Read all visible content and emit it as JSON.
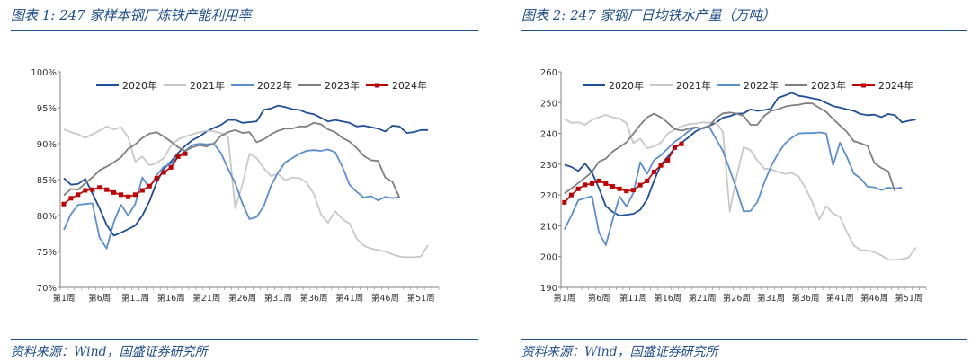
{
  "left": {
    "title": "图表 1:  247 家样本钢厂炼铁产能利用率",
    "source": "资料来源：Wind，国盛证券研究所"
  },
  "right": {
    "title": "图表 2:  247 家钢厂日均铁水产量（万吨）",
    "source": "资料来源：Wind，国盛证券研究所"
  },
  "chart_data": [
    {
      "type": "line",
      "title": "247 家样本钢厂炼铁产能利用率",
      "xlabel": "",
      "ylabel": "",
      "ylim": [
        70,
        100
      ],
      "ytick_labels": [
        "70%",
        "75%",
        "80%",
        "85%",
        "90%",
        "95%",
        "100%"
      ],
      "y_tick_values": [
        70,
        75,
        80,
        85,
        90,
        95,
        100
      ],
      "x_tick_labels": [
        "第1周",
        "第6周",
        "第11周",
        "第16周",
        "第21周",
        "第26周",
        "第31周",
        "第36周",
        "第41周",
        "第46周",
        "第51周"
      ],
      "legend": "top",
      "series": [
        {
          "name": "2020年",
          "color": "#1f4e9a",
          "values": [
            85.2,
            84.3,
            84.4,
            85.1,
            83.1,
            81.0,
            78.7,
            77.2,
            77.6,
            78.1,
            78.6,
            80.0,
            82.0,
            84.6,
            86.5,
            87.5,
            88.7,
            89.7,
            90.5,
            91.0,
            91.7,
            92.2,
            92.6,
            93.3,
            93.3,
            92.9,
            93.0,
            93.1,
            94.7,
            94.9,
            95.3,
            95.1,
            94.8,
            94.7,
            94.3,
            94.1,
            93.6,
            93.1,
            93.3,
            93.1,
            92.9,
            92.4,
            92.5,
            92.3,
            92.1,
            91.7,
            92.5,
            92.4,
            91.5,
            91.6,
            91.9,
            91.9
          ]
        },
        {
          "name": "2021年",
          "color": "#c8c8c8",
          "values": [
            92.0,
            91.6,
            91.3,
            90.8,
            91.3,
            91.8,
            92.4,
            92.0,
            92.3,
            90.9,
            87.5,
            88.2,
            87.0,
            87.3,
            88.0,
            89.7,
            90.6,
            91.0,
            91.3,
            91.6,
            91.8,
            91.7,
            91.5,
            90.9,
            81.0,
            84.3,
            88.6,
            88.0,
            86.6,
            85.5,
            85.8,
            84.9,
            85.3,
            85.2,
            84.6,
            83.0,
            80.2,
            79.0,
            80.6,
            79.5,
            78.9,
            76.8,
            75.8,
            75.4,
            75.2,
            75.0,
            74.6,
            74.3,
            74.2,
            74.2,
            74.3,
            75.9
          ]
        },
        {
          "name": "2022年",
          "color": "#5b8fd0",
          "values": [
            78.0,
            80.2,
            81.5,
            81.6,
            81.7,
            76.9,
            75.4,
            79.1,
            81.5,
            80.0,
            81.6,
            85.3,
            83.8,
            85.6,
            86.8,
            87.2,
            88.2,
            89.0,
            89.8,
            90.0,
            89.9,
            90.0,
            88.7,
            86.5,
            84.5,
            81.7,
            79.5,
            79.8,
            81.3,
            84.1,
            86.0,
            87.4,
            88.0,
            88.6,
            89.0,
            89.1,
            89.0,
            89.2,
            88.8,
            86.8,
            84.3,
            83.3,
            82.5,
            82.7,
            82.1,
            82.6,
            82.4,
            82.6
          ]
        },
        {
          "name": "2023年",
          "color": "#7f7f7f",
          "values": [
            82.8,
            83.7,
            83.6,
            84.5,
            85.3,
            86.3,
            86.8,
            87.4,
            88.1,
            89.3,
            89.9,
            90.8,
            91.4,
            91.6,
            91.0,
            90.3,
            89.5,
            89.0,
            89.5,
            89.8,
            89.6,
            90.0,
            91.1,
            91.6,
            91.9,
            91.5,
            91.6,
            90.2,
            90.6,
            91.3,
            91.8,
            92.1,
            92.1,
            92.4,
            92.4,
            92.9,
            92.7,
            92.0,
            91.6,
            90.8,
            90.3,
            89.4,
            88.3,
            87.7,
            87.6,
            85.3,
            84.7,
            82.5
          ]
        },
        {
          "name": "2024年",
          "color": "#c00000",
          "values": [
            81.6,
            82.4,
            82.9,
            83.5,
            83.6,
            83.9,
            83.6,
            83.2,
            82.9,
            82.6,
            82.9,
            83.5,
            84.1,
            85.2,
            86.0,
            86.7,
            88.2,
            88.6
          ]
        }
      ]
    },
    {
      "type": "line",
      "title": "247 家钢厂日均铁水产量（万吨）",
      "xlabel": "",
      "ylabel": "",
      "ylim": [
        190,
        260
      ],
      "ytick_labels": [
        "190",
        "200",
        "210",
        "220",
        "230",
        "240",
        "250",
        "260"
      ],
      "y_tick_values": [
        190,
        200,
        210,
        220,
        230,
        240,
        250,
        260
      ],
      "x_tick_labels": [
        "第1周",
        "第6周",
        "第11周",
        "第16周",
        "第21周",
        "第26周",
        "第31周",
        "第36周",
        "第41周",
        "第46周",
        "第51周"
      ],
      "legend": "top",
      "series": [
        {
          "name": "2020年",
          "color": "#1f4e9a",
          "values": [
            229.8,
            229.1,
            227.8,
            230.2,
            227.3,
            222.3,
            216.4,
            214.5,
            213.3,
            213.6,
            213.9,
            215.2,
            218.6,
            224.6,
            229.8,
            232.4,
            235.2,
            237.0,
            238.7,
            240.6,
            241.7,
            242.4,
            243.5,
            245.1,
            245.6,
            246.4,
            246.5,
            247.8,
            247.3,
            247.6,
            248.0,
            251.5,
            252.3,
            253.2,
            252.2,
            251.9,
            251.4,
            251.0,
            249.9,
            248.9,
            248.4,
            247.8,
            247.3,
            246.3,
            245.9,
            246.1,
            245.3,
            246.3,
            245.9,
            243.6,
            244.1,
            244.5
          ]
        },
        {
          "name": "2021年",
          "color": "#c8c8c8",
          "values": [
            244.8,
            243.4,
            243.6,
            242.8,
            244.4,
            245.2,
            246.0,
            245.2,
            244.8,
            243.3,
            236.9,
            238.3,
            235.2,
            235.8,
            237.0,
            240.0,
            241.2,
            242.3,
            243.0,
            243.2,
            243.6,
            243.5,
            243.6,
            240.5,
            214.6,
            226.0,
            235.5,
            234.6,
            231.2,
            228.6,
            228.3,
            227.5,
            226.8,
            227.2,
            226.0,
            222.3,
            217.6,
            212.0,
            216.4,
            214.0,
            212.9,
            208.0,
            203.6,
            202.1,
            202.0,
            201.4,
            200.4,
            199.0,
            198.9,
            199.2,
            199.7,
            203.0
          ]
        },
        {
          "name": "2022年",
          "color": "#5b8fd0",
          "values": [
            208.8,
            213.3,
            218.3,
            219.0,
            219.6,
            207.9,
            203.7,
            212.0,
            219.5,
            216.3,
            220.6,
            230.6,
            226.9,
            231.3,
            232.9,
            235.1,
            237.3,
            238.8,
            240.7,
            241.9,
            241.5,
            242.2,
            238.2,
            234.3,
            228.2,
            221.9,
            214.7,
            214.8,
            217.7,
            224.0,
            229.3,
            233.4,
            236.7,
            238.6,
            240.0,
            240.1,
            240.1,
            240.3,
            240.0,
            229.6,
            237.0,
            232.4,
            227.0,
            225.4,
            222.7,
            222.5,
            221.6,
            222.4,
            222.0,
            222.5
          ]
        },
        {
          "name": "2023年",
          "color": "#7f7f7f",
          "values": [
            220.5,
            222.1,
            223.9,
            225.6,
            227.5,
            230.8,
            231.8,
            234.1,
            235.6,
            237.1,
            239.9,
            242.8,
            245.2,
            246.4,
            245.2,
            243.5,
            241.4,
            240.9,
            241.5,
            242.0,
            241.6,
            242.3,
            245.0,
            246.5,
            246.8,
            246.4,
            245.7,
            242.8,
            242.8,
            245.7,
            247.3,
            247.8,
            248.7,
            249.1,
            249.3,
            249.8,
            249.7,
            248.3,
            247.0,
            244.7,
            242.6,
            240.5,
            237.5,
            236.8,
            235.9,
            230.4,
            228.8,
            227.7,
            221.1
          ]
        },
        {
          "name": "2024年",
          "color": "#c00000",
          "values": [
            217.6,
            220.0,
            222.0,
            223.3,
            223.7,
            224.6,
            223.7,
            222.8,
            222.0,
            221.3,
            221.6,
            223.2,
            224.6,
            227.5,
            229.6,
            231.3,
            235.4,
            236.6
          ]
        }
      ]
    }
  ]
}
